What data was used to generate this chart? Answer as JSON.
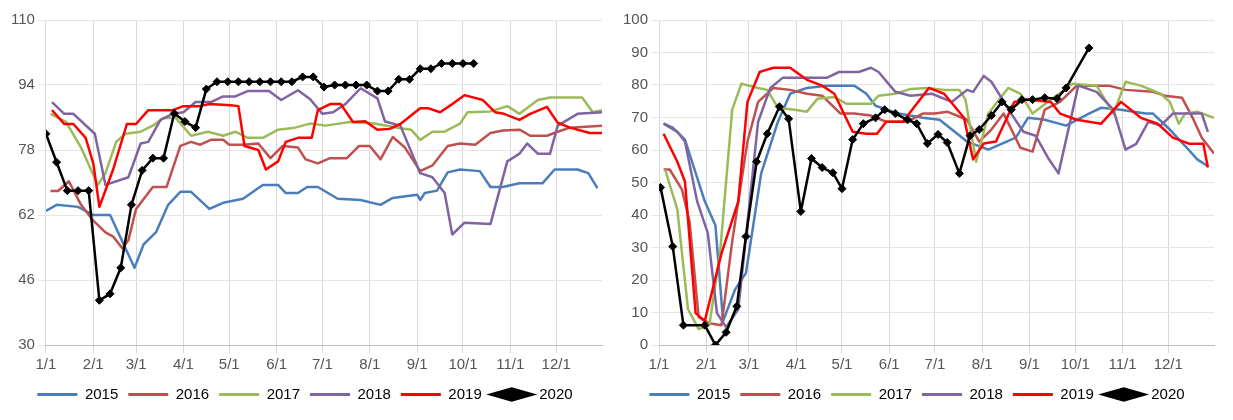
{
  "chart_data": [
    {
      "type": "line",
      "xlim": [
        "--01-01",
        "--12-31"
      ],
      "xticks": [
        {
          "value": "--01-01",
          "label": "1/1"
        },
        {
          "value": "--02-01",
          "label": "2/1"
        },
        {
          "value": "--03-01",
          "label": "3/1"
        },
        {
          "value": "--04-01",
          "label": "4/1"
        },
        {
          "value": "--05-01",
          "label": "5/1"
        },
        {
          "value": "--06-01",
          "label": "6/1"
        },
        {
          "value": "--07-01",
          "label": "7/1"
        },
        {
          "value": "--08-01",
          "label": "8/1"
        },
        {
          "value": "--09-01",
          "label": "9/1"
        },
        {
          "value": "--10-01",
          "label": "10/1"
        },
        {
          "value": "--11-01",
          "label": "11/1"
        },
        {
          "value": "--12-01",
          "label": "12/1"
        }
      ],
      "ylim": [
        30,
        110
      ],
      "yticks": [
        30,
        46,
        62,
        78,
        94,
        110
      ],
      "grid": true,
      "legend": "bottom",
      "series": [
        {
          "name": "2015",
          "color": "#4a7ebb",
          "marker": "none",
          "x": [
            "--01-01",
            "--01-08",
            "--01-22",
            "--02-01",
            "--02-12",
            "--02-28",
            "--03-06",
            "--03-14",
            "--03-22",
            "--03-30",
            "--04-06",
            "--04-18",
            "--04-27",
            "--05-10",
            "--05-23",
            "--06-02",
            "--06-07",
            "--06-15",
            "--06-21",
            "--06-28",
            "--07-11",
            "--07-26",
            "--08-08",
            "--08-16",
            "--09-01",
            "--09-03",
            "--09-06",
            "--09-14",
            "--09-21",
            "--09-29",
            "--10-12",
            "--10-19",
            "--10-27",
            "--11-07",
            "--11-22",
            "--11-30",
            "--12-15",
            "--12-22",
            "--12-28"
          ],
          "values": [
            63,
            64.5,
            64,
            62,
            62,
            49,
            54.8,
            57.7,
            64.5,
            67.7,
            67.7,
            63.5,
            65,
            66,
            69.4,
            69.4,
            67.4,
            67.4,
            68.9,
            68.9,
            66,
            65.7,
            64.5,
            66.2,
            67,
            65.7,
            67.4,
            68,
            72.5,
            73.2,
            72.8,
            68.9,
            68.9,
            69.8,
            69.8,
            73.2,
            73.2,
            72.3,
            68.6
          ]
        },
        {
          "name": "2016",
          "color": "#c0504d",
          "marker": "none",
          "x": [
            "--01-04",
            "--01-09",
            "--01-16",
            "--01-24",
            "--02-01",
            "--02-09",
            "--02-14",
            "--02-20",
            "--02-24",
            "--03-01",
            "--03-12",
            "--03-21",
            "--03-30",
            "--04-06",
            "--04-12",
            "--04-19",
            "--04-27",
            "--05-01",
            "--05-10",
            "--05-20",
            "--05-28",
            "--06-05",
            "--06-15",
            "--06-20",
            "--06-28",
            "--07-06",
            "--07-17",
            "--07-25",
            "--08-01",
            "--08-08",
            "--08-16",
            "--08-24",
            "--09-03",
            "--09-11",
            "--09-21",
            "--09-29",
            "--10-09",
            "--10-19",
            "--10-27",
            "--11-07",
            "--11-14",
            "--11-25",
            "--12-02",
            "--12-10",
            "--12-31"
          ],
          "values": [
            67.9,
            67.9,
            70.3,
            64.5,
            60.6,
            57.7,
            56.7,
            53.8,
            55.8,
            63.5,
            68.9,
            68.9,
            79,
            80,
            79.3,
            80.5,
            80.5,
            79.3,
            79.3,
            79.6,
            76,
            79,
            78.6,
            75.7,
            74.7,
            76,
            76,
            79,
            79,
            75.7,
            81.2,
            78.6,
            72.8,
            74.2,
            79,
            79.6,
            79.3,
            82.2,
            82.8,
            83,
            81.5,
            81.5,
            82.5,
            83.5,
            84
          ]
        },
        {
          "name": "2017",
          "color": "#9bbb59",
          "marker": "none",
          "x": [
            "--01-04",
            "--01-14",
            "--01-24",
            "--02-04",
            "--02-09",
            "--02-16",
            "--02-22",
            "--03-04",
            "--03-12",
            "--03-19",
            "--03-27",
            "--04-06",
            "--04-17",
            "--04-27",
            "--05-05",
            "--05-13",
            "--05-23",
            "--06-02",
            "--06-13",
            "--06-23",
            "--07-03",
            "--07-19",
            "--08-04",
            "--08-19",
            "--08-28",
            "--09-03",
            "--09-11",
            "--09-19",
            "--09-29",
            "--10-04",
            "--10-19",
            "--10-30",
            "--11-07",
            "--11-19",
            "--11-27",
            "--12-18",
            "--12-25",
            "--12-31"
          ],
          "values": [
            86.9,
            85,
            78.6,
            69.4,
            72.3,
            80,
            82,
            82.5,
            84,
            85.9,
            85.9,
            81.5,
            82.5,
            81.5,
            82.5,
            81,
            81,
            83,
            83.5,
            84.5,
            84,
            84.9,
            84.5,
            83.5,
            83,
            80.5,
            82.5,
            82.5,
            84.5,
            87.3,
            87.5,
            88.8,
            86.9,
            90.3,
            90.9,
            90.9,
            87.3,
            87.8
          ]
        },
        {
          "name": "2018",
          "color": "#8064a2",
          "marker": "none",
          "x": [
            "--01-05",
            "--01-13",
            "--01-19",
            "--02-02",
            "--02-09",
            "--02-24",
            "--03-04",
            "--03-09",
            "--03-17",
            "--03-25",
            "--04-01",
            "--04-09",
            "--04-19",
            "--04-27",
            "--05-05",
            "--05-13",
            "--05-27",
            "--06-04",
            "--06-15",
            "--06-23",
            "--07-01",
            "--07-08",
            "--07-16",
            "--07-26",
            "--08-06",
            "--08-11",
            "--08-21",
            "--09-03",
            "--09-11",
            "--09-19",
            "--09-24",
            "--10-02",
            "--10-19",
            "--10-30",
            "--11-07",
            "--11-12",
            "--11-19",
            "--11-27",
            "--12-02",
            "--12-15",
            "--12-31"
          ],
          "values": [
            89.8,
            86.9,
            86.9,
            82,
            69.4,
            71.3,
            79.6,
            80,
            85.4,
            86.9,
            87.3,
            89.8,
            89.8,
            91.2,
            91.2,
            92.5,
            92.5,
            90.3,
            92.7,
            90.5,
            86.9,
            87.3,
            89.3,
            93.2,
            90.7,
            85,
            84,
            72.3,
            71.3,
            67.4,
            57.2,
            60.1,
            59.8,
            75.2,
            77.1,
            79.6,
            77.1,
            77.1,
            84,
            86.9,
            87.3
          ]
        },
        {
          "name": "2019",
          "color": "#ff0000",
          "marker": "none",
          "x": [
            "--01-05",
            "--01-13",
            "--01-19",
            "--01-27",
            "--02-01",
            "--02-05",
            "--02-14",
            "--02-23",
            "--03-01",
            "--03-09",
            "--03-25",
            "--04-01",
            "--04-12",
            "--04-18",
            "--05-02",
            "--05-07",
            "--05-11",
            "--05-20",
            "--05-25",
            "--06-02",
            "--06-07",
            "--06-15",
            "--06-24",
            "--06-28",
            "--07-06",
            "--07-13",
            "--07-21",
            "--07-29",
            "--08-06",
            "--08-14",
            "--08-21",
            "--09-03",
            "--09-08",
            "--09-16",
            "--09-24",
            "--10-02",
            "--10-14",
            "--10-22",
            "--10-27",
            "--11-07",
            "--11-14",
            "--11-25",
            "--12-02",
            "--12-10",
            "--12-23",
            "--12-31"
          ],
          "values": [
            87.8,
            84.4,
            84.4,
            81,
            74.7,
            64,
            73.2,
            84.4,
            84.4,
            87.8,
            87.8,
            88.8,
            88.8,
            89.3,
            89,
            88.8,
            79,
            78,
            73.2,
            75.2,
            80,
            81,
            81,
            87.8,
            89.3,
            89.3,
            84.9,
            85.1,
            83,
            83.2,
            84.4,
            88.3,
            88.3,
            87.3,
            89.3,
            91.5,
            90.3,
            87.3,
            87,
            85.4,
            86.9,
            88.6,
            84.7,
            83.5,
            82.2,
            82.2
          ]
        },
        {
          "name": "2020",
          "color": "#000000",
          "marker": "diamond",
          "x": [
            "--01-01",
            "--01-08",
            "--01-15",
            "--01-22",
            "--01-29",
            "--02-05",
            "--02-12",
            "--02-19",
            "--02-26",
            "--03-05",
            "--03-12",
            "--03-19",
            "--03-26",
            "--04-02",
            "--04-09",
            "--04-16",
            "--04-23",
            "--04-30",
            "--05-07",
            "--05-14",
            "--05-21",
            "--05-28",
            "--06-04",
            "--06-11",
            "--06-18",
            "--06-25",
            "--07-02",
            "--07-09",
            "--07-16",
            "--07-23",
            "--07-30",
            "--08-06",
            "--08-13",
            "--08-20",
            "--08-27",
            "--09-03",
            "--09-10",
            "--09-17",
            "--09-24",
            "--10-01",
            "--10-08"
          ],
          "values": [
            82,
            75,
            68,
            68,
            68,
            41,
            42.6,
            49,
            64.5,
            73,
            76,
            76,
            87,
            85,
            83.5,
            93,
            94.8,
            94.8,
            94.8,
            94.8,
            94.8,
            94.8,
            94.8,
            94.8,
            96,
            96,
            93.5,
            94,
            94,
            94,
            94,
            92.5,
            92.5,
            95.4,
            95.4,
            98,
            98,
            99.3,
            99.3,
            99.3,
            99.3
          ]
        }
      ]
    },
    {
      "type": "line",
      "xlim": [
        "--01-01",
        "--12-31"
      ],
      "xticks": [
        {
          "value": "--01-01",
          "label": "1/1"
        },
        {
          "value": "--02-01",
          "label": "2/1"
        },
        {
          "value": "--03-01",
          "label": "3/1"
        },
        {
          "value": "--04-01",
          "label": "4/1"
        },
        {
          "value": "--05-01",
          "label": "5/1"
        },
        {
          "value": "--06-01",
          "label": "6/1"
        },
        {
          "value": "--07-01",
          "label": "7/1"
        },
        {
          "value": "--08-01",
          "label": "8/1"
        },
        {
          "value": "--09-01",
          "label": "9/1"
        },
        {
          "value": "--10-01",
          "label": "10/1"
        },
        {
          "value": "--11-01",
          "label": "11/1"
        },
        {
          "value": "--12-01",
          "label": "12/1"
        }
      ],
      "ylim": [
        0,
        100
      ],
      "yticks": [
        0,
        10,
        20,
        30,
        40,
        50,
        60,
        70,
        80,
        90,
        100
      ],
      "grid": true,
      "legend": "bottom",
      "series": [
        {
          "name": "2015",
          "color": "#4a7ebb",
          "marker": "none",
          "x": [
            "--01-04",
            "--01-10",
            "--01-18",
            "--01-31",
            "--02-07",
            "--02-12",
            "--02-20",
            "--02-27",
            "--03-09",
            "--03-20",
            "--03-28",
            "--04-08",
            "--04-21",
            "--05-09",
            "--05-17",
            "--05-23",
            "--06-07",
            "--06-23",
            "--07-04",
            "--07-22",
            "--08-05",
            "--08-23",
            "--08-31",
            "--09-11",
            "--09-25",
            "--10-10",
            "--10-18",
            "--10-31",
            "--11-16",
            "--11-21",
            "--12-02",
            "--12-12",
            "--12-20",
            "--12-27"
          ],
          "values": [
            68.1,
            66.9,
            63.2,
            44.2,
            36.8,
            7.4,
            17.2,
            22.1,
            52.8,
            68.7,
            77.3,
            79.1,
            79.8,
            79.8,
            77.3,
            73.6,
            71.2,
            69.9,
            69.3,
            62.6,
            60.1,
            63.8,
            69.9,
            69.3,
            67.5,
            71.2,
            73,
            72.4,
            71.2,
            71.2,
            66.3,
            61.3,
            57.1,
            55
          ]
        },
        {
          "name": "2016",
          "color": "#c0504d",
          "marker": "none",
          "x": [
            "--01-04",
            "--01-08",
            "--01-16",
            "--01-21",
            "--01-27",
            "--02-03",
            "--02-11",
            "--02-18",
            "--02-28",
            "--03-07",
            "--03-17",
            "--03-28",
            "--04-08",
            "--04-18",
            "--04-30",
            "--05-09",
            "--05-20",
            "--05-30",
            "--06-13",
            "--06-23",
            "--07-01",
            "--07-09",
            "--07-22",
            "--07-30",
            "--08-07",
            "--08-15",
            "--08-26",
            "--09-03",
            "--09-11",
            "--09-21",
            "--10-02",
            "--10-23",
            "--11-03",
            "--11-21",
            "--11-29",
            "--12-10",
            "--12-17",
            "--12-23",
            "--12-31"
          ],
          "values": [
            54,
            54,
            47.9,
            38,
            8.6,
            6.7,
            6.1,
            31.9,
            62.6,
            74.8,
            79.1,
            78.5,
            77.3,
            76.7,
            71.2,
            71.2,
            70.6,
            68.7,
            68.7,
            71.2,
            71.2,
            71.8,
            69.3,
            62.6,
            66.3,
            71.2,
            60.7,
            59.5,
            72.4,
            74.8,
            79.8,
            79.8,
            78.5,
            77.9,
            76.7,
            76.1,
            69.9,
            63.8,
            58.9
          ]
        },
        {
          "name": "2017",
          "color": "#9bbb59",
          "marker": "none",
          "x": [
            "--01-05",
            "--01-13",
            "--01-20",
            "--01-27",
            "--02-03",
            "--02-10",
            "--02-18",
            "--02-24",
            "--03-07",
            "--03-13",
            "--03-20",
            "--03-31",
            "--04-08",
            "--04-15",
            "--04-26",
            "--05-04",
            "--05-20",
            "--05-25",
            "--06-05",
            "--06-15",
            "--06-26",
            "--07-07",
            "--07-17",
            "--07-21",
            "--07-28",
            "--08-05",
            "--08-18",
            "--08-26",
            "--09-03",
            "--09-13",
            "--09-24",
            "--09-29",
            "--10-15",
            "--10-26",
            "--11-03",
            "--11-13",
            "--11-26",
            "--12-02",
            "--12-08",
            "--12-12",
            "--12-20",
            "--12-31"
          ],
          "values": [
            54,
            41.7,
            11,
            4.9,
            6.1,
            28.2,
            72.4,
            80.4,
            79.1,
            78.5,
            73,
            72.4,
            71.8,
            75.8,
            76.3,
            74.2,
            74.2,
            76.7,
            77.3,
            78.8,
            79.1,
            78.5,
            78.5,
            75.5,
            56.4,
            71.2,
            79.1,
            77.3,
            71.2,
            74.8,
            78.5,
            80.4,
            79.8,
            71.2,
            81,
            79.8,
            77.3,
            74.8,
            68.1,
            71.2,
            71.8,
            69.9
          ]
        },
        {
          "name": "2018",
          "color": "#8064a2",
          "marker": "none",
          "x": [
            "--01-04",
            "--01-13",
            "--01-18",
            "--01-26",
            "--02-02",
            "--02-08",
            "--02-14",
            "--02-22",
            "--03-07",
            "--03-15",
            "--03-23",
            "--04-05",
            "--04-21",
            "--04-29",
            "--05-12",
            "--05-20",
            "--05-25",
            "--06-05",
            "--06-15",
            "--06-29",
            "--07-12",
            "--07-22",
            "--07-26",
            "--08-02",
            "--08-07",
            "--08-20",
            "--08-28",
            "--09-05",
            "--09-13",
            "--09-20",
            "--10-03",
            "--10-15",
            "--10-26",
            "--11-03",
            "--11-10",
            "--11-18",
            "--11-26",
            "--12-04",
            "--12-15",
            "--12-23",
            "--12-27"
          ],
          "values": [
            68.1,
            65.6,
            62.6,
            44.2,
            34.4,
            9.8,
            5.5,
            11,
            68.7,
            79.1,
            82.2,
            82.2,
            82.2,
            84,
            84,
            85.3,
            84,
            77.9,
            76.7,
            77.3,
            74.8,
            78.5,
            77.9,
            82.8,
            81,
            71.2,
            65.6,
            64.4,
            57.7,
            52.8,
            79.8,
            77.9,
            72.4,
            60.1,
            61.9,
            68.7,
            67.5,
            71.2,
            71.2,
            71.2,
            65.6
          ]
        },
        {
          "name": "2019",
          "color": "#ff0000",
          "marker": "none",
          "x": [
            "--01-04",
            "--01-13",
            "--01-18",
            "--01-25",
            "--01-31",
            "--02-11",
            "--02-22",
            "--02-28",
            "--03-08",
            "--03-17",
            "--03-28",
            "--04-08",
            "--04-18",
            "--04-26",
            "--05-08",
            "--05-17",
            "--05-24",
            "--05-30",
            "--06-10",
            "--06-15",
            "--06-27",
            "--07-07",
            "--07-20",
            "--07-26",
            "--08-02",
            "--08-10",
            "--08-22",
            "--08-31",
            "--09-15",
            "--09-21",
            "--10-02",
            "--10-18",
            "--10-31",
            "--11-13",
            "--11-24",
            "--12-04",
            "--12-15",
            "--12-24",
            "--12-27"
          ],
          "values": [
            65,
            56.4,
            50.3,
            9.8,
            7.4,
            28.2,
            44.2,
            74.8,
            84,
            85.3,
            85.3,
            81.6,
            79.8,
            77.3,
            65.6,
            65,
            65,
            68.7,
            68.7,
            71.8,
            79.1,
            77.3,
            69.9,
            57.1,
            62,
            62.6,
            74.8,
            75.5,
            74.8,
            71.2,
            69.3,
            68.1,
            74.8,
            69.9,
            68.1,
            63.8,
            61.9,
            61.9,
            54.6
          ]
        },
        {
          "name": "2020",
          "color": "#000000",
          "marker": "diamond",
          "x": [
            "--01-02",
            "--01-10",
            "--01-17",
            "--01-31",
            "--02-07",
            "--02-14",
            "--02-21",
            "--02-27",
            "--03-06",
            "--03-13",
            "--03-21",
            "--03-27",
            "--04-04",
            "--04-11",
            "--04-18",
            "--04-25",
            "--05-01",
            "--05-08",
            "--05-15",
            "--05-23",
            "--05-29",
            "--06-05",
            "--06-13",
            "--06-19",
            "--06-26",
            "--07-03",
            "--07-09",
            "--07-17",
            "--07-24",
            "--07-30",
            "--08-07",
            "--08-14",
            "--08-20",
            "--08-27",
            "--09-03",
            "--09-11",
            "--09-19",
            "--09-25",
            "--10-10"
          ],
          "values": [
            48.5,
            30.3,
            6.1,
            6.1,
            0,
            3.9,
            11.9,
            33.4,
            56.4,
            65,
            73.3,
            69.6,
            41.1,
            57.4,
            54.6,
            53,
            48.1,
            63.2,
            68.1,
            69.9,
            72.4,
            71.2,
            69.3,
            68.1,
            62,
            64.8,
            62.3,
            52.8,
            64.4,
            66.3,
            70.6,
            74.8,
            72.4,
            75.5,
            75.5,
            76.1,
            75.8,
            79.1,
            91.4
          ]
        }
      ]
    }
  ]
}
